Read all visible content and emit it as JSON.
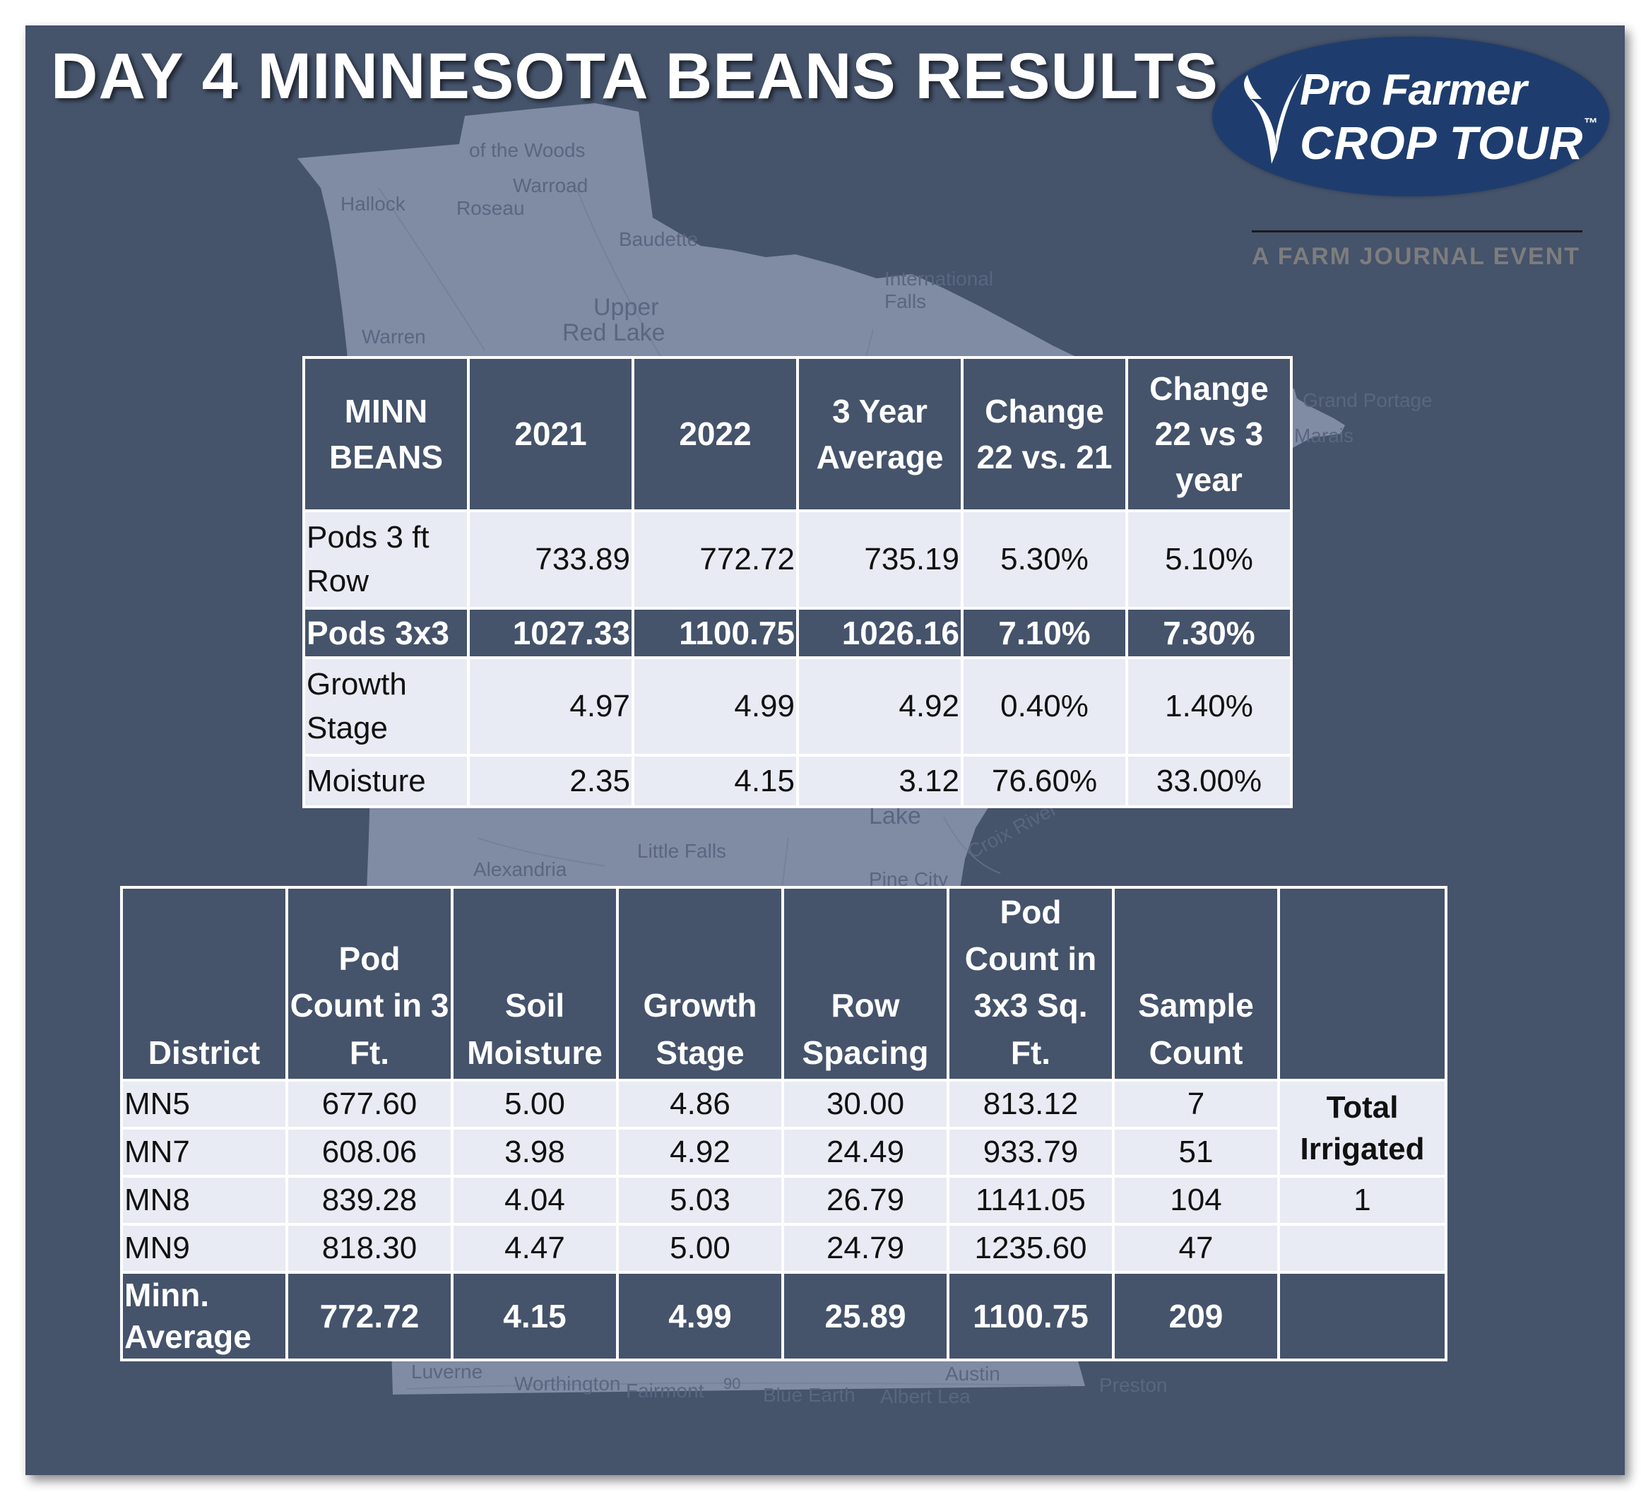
{
  "title": "DAY 4 MINNESOTA BEANS RESULTS",
  "logo": {
    "line1": "Pro Farmer",
    "line2": "CROP TOUR",
    "tm": "™",
    "subtitle": "A FARM JOURNAL EVENT",
    "oval_color": "#1e3d6e"
  },
  "colors": {
    "background": "#45536b",
    "header_cell": "#45536b",
    "light_row": "#e8ebf3"
  },
  "map_labels": [
    "of the Woods",
    "Warroad",
    "Hallock",
    "Roseau",
    "Baudette",
    "International",
    "Falls",
    "Upper",
    "Red Lake",
    "Warren",
    "Grand Portage",
    "Marais",
    "Lake",
    "Alexandria",
    "Little Falls",
    "Pine City",
    "Croix River",
    "Luverne",
    "Worthington",
    "Fairmont",
    "90",
    "Blue Earth",
    "Albert Lea",
    "Austin",
    "Preston"
  ],
  "summary_table": {
    "headers": [
      "MINN BEANS",
      "2021",
      "2022",
      "3 Year Average",
      "Change 22 vs. 21",
      "Change 22 vs 3 year"
    ],
    "rows": [
      {
        "label": "Pods 3 ft Row",
        "values": [
          "733.89",
          "772.72",
          "735.19",
          "5.30%",
          "5.10%"
        ]
      },
      {
        "label": "Pods 3x3",
        "values": [
          "1027.33",
          "1100.75",
          "1026.16",
          "7.10%",
          "7.30%"
        ]
      },
      {
        "label": "Growth Stage",
        "values": [
          "4.97",
          "4.99",
          "4.92",
          "0.40%",
          "1.40%"
        ]
      },
      {
        "label": "Moisture",
        "values": [
          "2.35",
          "4.15",
          "3.12",
          "76.60%",
          "33.00%"
        ]
      }
    ]
  },
  "district_table": {
    "headers": [
      "District",
      "Pod Count in 3 Ft.",
      "Soil Moisture",
      "Growth Stage",
      "Row Spacing",
      "Pod Count in 3x3 Sq. Ft.",
      "Sample Count",
      ""
    ],
    "rows": [
      {
        "label": "MN5",
        "values": [
          "677.60",
          "5.00",
          "4.86",
          "30.00",
          "813.12",
          "7"
        ]
      },
      {
        "label": "MN7",
        "values": [
          "608.06",
          "3.98",
          "4.92",
          "24.49",
          "933.79",
          "51"
        ]
      },
      {
        "label": "MN8",
        "values": [
          "839.28",
          "4.04",
          "5.03",
          "26.79",
          "1141.05",
          "104"
        ]
      },
      {
        "label": "MN9",
        "values": [
          "818.30",
          "4.47",
          "5.00",
          "24.79",
          "1235.60",
          "47"
        ]
      }
    ],
    "average": {
      "label": "Minn. Average",
      "values": [
        "772.72",
        "4.15",
        "4.99",
        "25.89",
        "1100.75",
        "209"
      ]
    },
    "irrigated": {
      "label": "Total Irrigated",
      "value": "1"
    }
  }
}
